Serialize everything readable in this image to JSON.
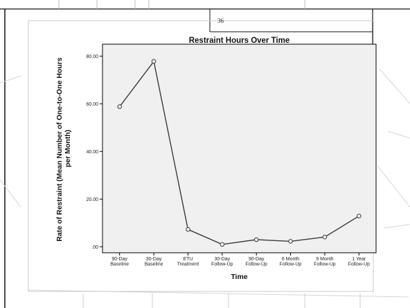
{
  "page": {
    "page_number": "36"
  },
  "colors": {
    "plot_background": "#f0f0f0",
    "line": "#3a3a3a",
    "marker_fill": "#f0f0f0",
    "frame": "#000000"
  },
  "chart_data": {
    "type": "line",
    "title": "Restraint Hours Over Time",
    "xlabel": "Time",
    "ylabel": "Rate of Restraint (Mean Number of One-to-One Hours per Month)",
    "ylabel_lines": [
      "Rate of Restraint (Mean Number of One-to-One Hours",
      "per Month)"
    ],
    "categories": [
      [
        "90-Day",
        "Baseline"
      ],
      [
        "30-Day",
        "Baseline"
      ],
      [
        "ETU",
        "Treatment"
      ],
      [
        "30-Day",
        "Follow-Up"
      ],
      [
        "90-Day",
        "Follow-Up"
      ],
      [
        "6 Month",
        "Follow-Up"
      ],
      [
        "9 Month",
        "Follow-Up"
      ],
      [
        "1 Year",
        "Follow-Up"
      ]
    ],
    "series": [
      {
        "values": [
          58.8,
          77.8,
          7.3,
          1.0,
          3.0,
          2.3,
          4.1,
          12.9
        ]
      }
    ],
    "yticks": [
      0,
      20,
      40,
      60,
      80
    ],
    "ytick_labels": [
      ".00",
      "20.00",
      "40.00",
      "60.00",
      "80.00"
    ],
    "ylim": [
      -2.5,
      85
    ],
    "grid": false,
    "legend": "none",
    "markers": "open-circle"
  }
}
